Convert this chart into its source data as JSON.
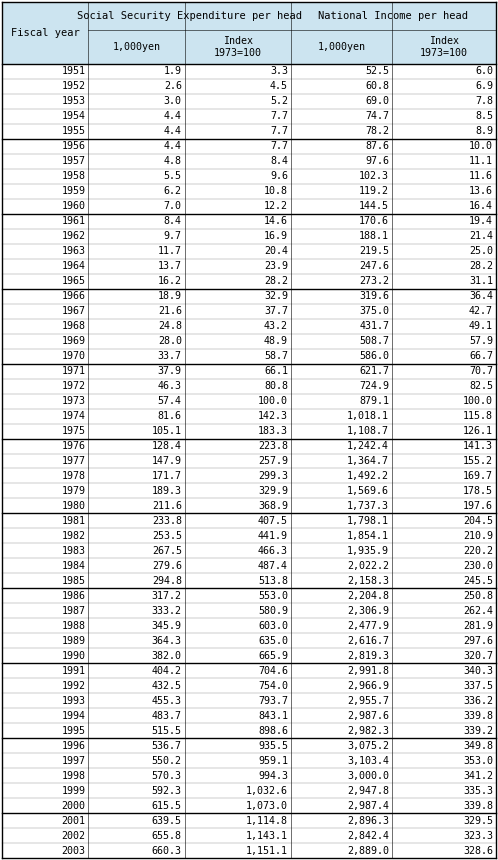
{
  "header_bg": "#cce4f0",
  "col_header1": "Social Security Expenditure per head",
  "col_header2": "National Income per head",
  "col_sub1": "1,000yen",
  "col_sub2": "Index\n1973=100",
  "col_sub3": "1,000yen",
  "col_sub4": "Index\n1973=100",
  "row_header": "Fiscal year",
  "rows": [
    [
      "1951",
      "1.9",
      "3.3",
      "52.5",
      "6.0"
    ],
    [
      "1952",
      "2.6",
      "4.5",
      "60.8",
      "6.9"
    ],
    [
      "1953",
      "3.0",
      "5.2",
      "69.0",
      "7.8"
    ],
    [
      "1954",
      "4.4",
      "7.7",
      "74.7",
      "8.5"
    ],
    [
      "1955",
      "4.4",
      "7.7",
      "78.2",
      "8.9"
    ],
    [
      "1956",
      "4.4",
      "7.7",
      "87.6",
      "10.0"
    ],
    [
      "1957",
      "4.8",
      "8.4",
      "97.6",
      "11.1"
    ],
    [
      "1958",
      "5.5",
      "9.6",
      "102.3",
      "11.6"
    ],
    [
      "1959",
      "6.2",
      "10.8",
      "119.2",
      "13.6"
    ],
    [
      "1960",
      "7.0",
      "12.2",
      "144.5",
      "16.4"
    ],
    [
      "1961",
      "8.4",
      "14.6",
      "170.6",
      "19.4"
    ],
    [
      "1962",
      "9.7",
      "16.9",
      "188.1",
      "21.4"
    ],
    [
      "1963",
      "11.7",
      "20.4",
      "219.5",
      "25.0"
    ],
    [
      "1964",
      "13.7",
      "23.9",
      "247.6",
      "28.2"
    ],
    [
      "1965",
      "16.2",
      "28.2",
      "273.2",
      "31.1"
    ],
    [
      "1966",
      "18.9",
      "32.9",
      "319.6",
      "36.4"
    ],
    [
      "1967",
      "21.6",
      "37.7",
      "375.0",
      "42.7"
    ],
    [
      "1968",
      "24.8",
      "43.2",
      "431.7",
      "49.1"
    ],
    [
      "1969",
      "28.0",
      "48.9",
      "508.7",
      "57.9"
    ],
    [
      "1970",
      "33.7",
      "58.7",
      "586.0",
      "66.7"
    ],
    [
      "1971",
      "37.9",
      "66.1",
      "621.7",
      "70.7"
    ],
    [
      "1972",
      "46.3",
      "80.8",
      "724.9",
      "82.5"
    ],
    [
      "1973",
      "57.4",
      "100.0",
      "879.1",
      "100.0"
    ],
    [
      "1974",
      "81.6",
      "142.3",
      "1,018.1",
      "115.8"
    ],
    [
      "1975",
      "105.1",
      "183.3",
      "1,108.7",
      "126.1"
    ],
    [
      "1976",
      "128.4",
      "223.8",
      "1,242.4",
      "141.3"
    ],
    [
      "1977",
      "147.9",
      "257.9",
      "1,364.7",
      "155.2"
    ],
    [
      "1978",
      "171.7",
      "299.3",
      "1,492.2",
      "169.7"
    ],
    [
      "1979",
      "189.3",
      "329.9",
      "1,569.6",
      "178.5"
    ],
    [
      "1980",
      "211.6",
      "368.9",
      "1,737.3",
      "197.6"
    ],
    [
      "1981",
      "233.8",
      "407.5",
      "1,798.1",
      "204.5"
    ],
    [
      "1982",
      "253.5",
      "441.9",
      "1,854.1",
      "210.9"
    ],
    [
      "1983",
      "267.5",
      "466.3",
      "1,935.9",
      "220.2"
    ],
    [
      "1984",
      "279.6",
      "487.4",
      "2,022.2",
      "230.0"
    ],
    [
      "1985",
      "294.8",
      "513.8",
      "2,158.3",
      "245.5"
    ],
    [
      "1986",
      "317.2",
      "553.0",
      "2,204.8",
      "250.8"
    ],
    [
      "1987",
      "333.2",
      "580.9",
      "2,306.9",
      "262.4"
    ],
    [
      "1988",
      "345.9",
      "603.0",
      "2,477.9",
      "281.9"
    ],
    [
      "1989",
      "364.3",
      "635.0",
      "2,616.7",
      "297.6"
    ],
    [
      "1990",
      "382.0",
      "665.9",
      "2,819.3",
      "320.7"
    ],
    [
      "1991",
      "404.2",
      "704.6",
      "2,991.8",
      "340.3"
    ],
    [
      "1992",
      "432.5",
      "754.0",
      "2,966.9",
      "337.5"
    ],
    [
      "1993",
      "455.3",
      "793.7",
      "2,955.7",
      "336.2"
    ],
    [
      "1994",
      "483.7",
      "843.1",
      "2,987.6",
      "339.8"
    ],
    [
      "1995",
      "515.5",
      "898.6",
      "2,982.3",
      "339.2"
    ],
    [
      "1996",
      "536.7",
      "935.5",
      "3,075.2",
      "349.8"
    ],
    [
      "1997",
      "550.2",
      "959.1",
      "3,103.4",
      "353.0"
    ],
    [
      "1998",
      "570.3",
      "994.3",
      "3,000.0",
      "341.2"
    ],
    [
      "1999",
      "592.3",
      "1,032.6",
      "2,947.8",
      "335.3"
    ],
    [
      "2000",
      "615.5",
      "1,073.0",
      "2,987.4",
      "339.8"
    ],
    [
      "2001",
      "639.5",
      "1,114.8",
      "2,896.3",
      "329.5"
    ],
    [
      "2002",
      "655.8",
      "1,143.1",
      "2,842.4",
      "323.3"
    ],
    [
      "2003",
      "660.3",
      "1,151.1",
      "2,889.0",
      "328.6"
    ]
  ],
  "group_separators": [
    5,
    10,
    15,
    20,
    25,
    30,
    35,
    40,
    45,
    50
  ],
  "fig_width": 4.98,
  "fig_height": 8.6,
  "dpi": 100,
  "font_size": 7.2,
  "header_font_size": 7.5,
  "lw_thick": 1.0,
  "lw_thin": 0.4,
  "lw_row": 0.3
}
